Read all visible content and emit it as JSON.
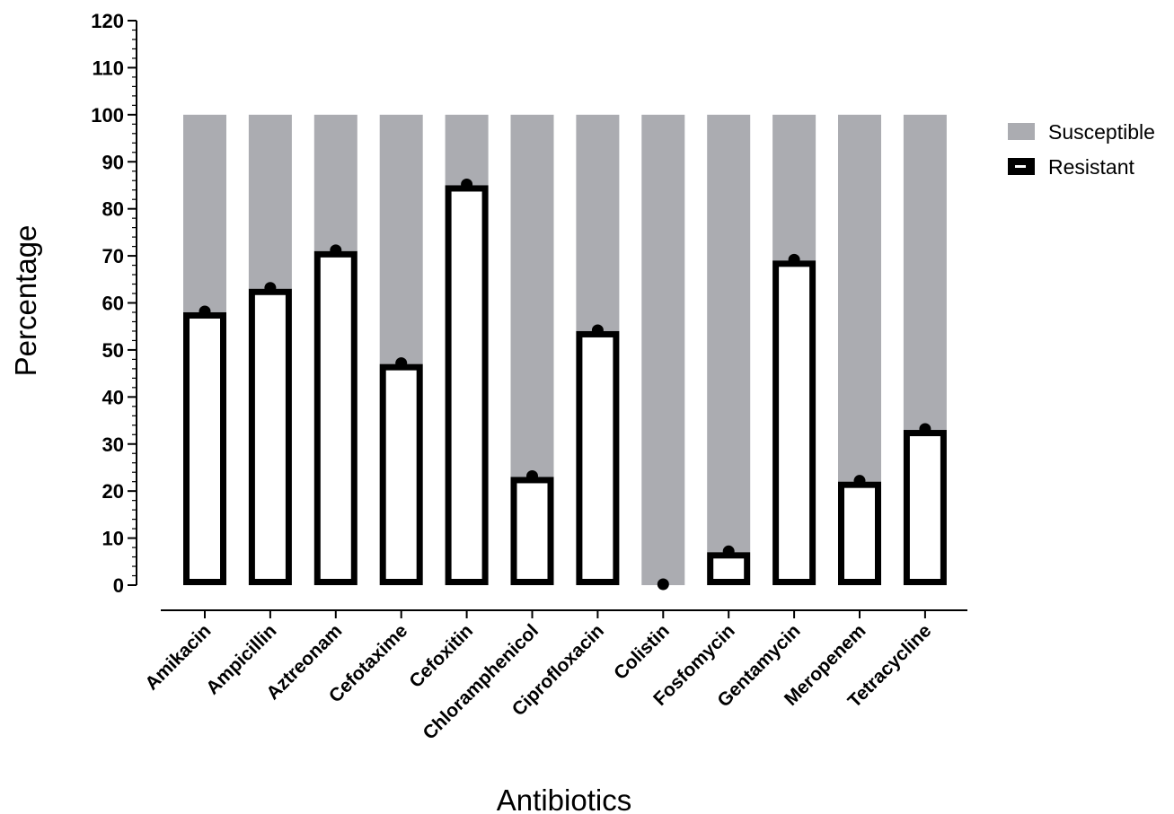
{
  "chart_data": {
    "type": "bar",
    "stacked": true,
    "xlabel": "Antibiotics",
    "ylabel": "Percentage",
    "ylim": [
      0,
      120
    ],
    "yticks": [
      0,
      10,
      20,
      30,
      40,
      50,
      60,
      70,
      80,
      90,
      100,
      110,
      120
    ],
    "grid": false,
    "legend_position": "right",
    "categories": [
      "Amikacin",
      "Ampicillin",
      "Aztreonam",
      "Cefotaxime",
      "Cefoxitin",
      "Chloramphenicol",
      "Ciprofloxacin",
      "Colistin",
      "Fosfomycin",
      "Gentamycin",
      "Meropenem",
      "Tetracycline"
    ],
    "series": [
      {
        "name": "Susceptible",
        "values": [
          42,
          37,
          29,
          53,
          15,
          77,
          46,
          100,
          93,
          31,
          78,
          67
        ],
        "color": "#abacb1"
      },
      {
        "name": "Resistant",
        "values": [
          58,
          63,
          71,
          47,
          85,
          23,
          54,
          0,
          7,
          69,
          22,
          33
        ],
        "color": "#ffffff",
        "stroke": "#000000"
      }
    ]
  }
}
